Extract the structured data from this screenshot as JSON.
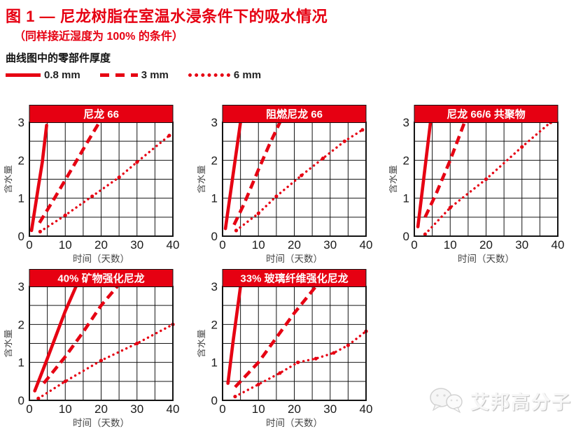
{
  "page": {
    "background": "#ffffff",
    "accent_red": "#e60012",
    "grid_color": "#141414"
  },
  "header": {
    "title": "图 1 — 尼龙树脂在室温水浸条件下的吸水情况",
    "subtitle": "（同样接近湿度为 100% 的条件）",
    "legend_heading": "曲线图中的零部件厚度",
    "legend": [
      {
        "style": "solid",
        "label": "0.8 mm"
      },
      {
        "style": "dashed",
        "label": "3 mm"
      },
      {
        "style": "dotted",
        "label": "6 mm"
      }
    ]
  },
  "axes_shared": {
    "xlabel": "时间（天数）",
    "ylabel": "含水量",
    "xticks": [
      0,
      10,
      20,
      30,
      40
    ],
    "yticks": [
      0,
      1,
      2,
      3
    ],
    "xlim": [
      0,
      40
    ],
    "ylim": [
      0,
      3
    ],
    "grid": true
  },
  "chart_data": [
    {
      "type": "line",
      "title": "尼龙 66",
      "xlabel": "时间（天数）",
      "ylabel": "含水量",
      "xlim": [
        0,
        40
      ],
      "ylim": [
        0,
        3
      ],
      "xticks": [
        0,
        10,
        20,
        30,
        40
      ],
      "yticks": [
        0,
        1,
        2,
        3
      ],
      "grid": true,
      "series": [
        {
          "name": "0.8 mm",
          "style": "solid",
          "points": [
            [
              0.6,
              0.15
            ],
            [
              2.5,
              1.3
            ],
            [
              3.6,
              1.95
            ],
            [
              4.8,
              2.92
            ]
          ]
        },
        {
          "name": "3 mm",
          "style": "dashed",
          "points": [
            [
              2.8,
              0.35
            ],
            [
              7,
              1.0
            ],
            [
              12,
              1.8
            ],
            [
              16,
              2.45
            ],
            [
              19.5,
              3.0
            ]
          ]
        },
        {
          "name": "6 mm",
          "style": "dotted",
          "points": [
            [
              3,
              0.12
            ],
            [
              10,
              0.55
            ],
            [
              17.5,
              1.05
            ],
            [
              25,
              1.55
            ],
            [
              30,
              1.95
            ],
            [
              39,
              2.65
            ]
          ]
        }
      ]
    },
    {
      "type": "line",
      "title": "阻燃尼龙 66",
      "xlabel": "时间（天数）",
      "ylabel": "含水量",
      "xlim": [
        0,
        40
      ],
      "ylim": [
        0,
        3
      ],
      "xticks": [
        0,
        10,
        20,
        30,
        40
      ],
      "yticks": [
        0,
        1,
        2,
        3
      ],
      "grid": true,
      "series": [
        {
          "name": "0.8 mm",
          "style": "solid",
          "points": [
            [
              0.8,
              0.2
            ],
            [
              2.6,
              1.4
            ],
            [
              5,
              3.0
            ]
          ]
        },
        {
          "name": "3 mm",
          "style": "dashed",
          "points": [
            [
              3.2,
              0.3
            ],
            [
              6,
              0.85
            ],
            [
              10,
              1.75
            ],
            [
              13,
              2.4
            ],
            [
              16,
              3.0
            ]
          ]
        },
        {
          "name": "6 mm",
          "style": "dotted",
          "points": [
            [
              3.8,
              0.15
            ],
            [
              10,
              0.6
            ],
            [
              15,
              1.05
            ],
            [
              22,
              1.6
            ],
            [
              28,
              2.05
            ],
            [
              34,
              2.5
            ],
            [
              39,
              2.8
            ]
          ]
        }
      ]
    },
    {
      "type": "line",
      "title": "尼龙 66/6 共聚物",
      "xlabel": "时间（天数）",
      "ylabel": "含水量",
      "xlim": [
        0,
        40
      ],
      "ylim": [
        0,
        3
      ],
      "xticks": [
        0,
        10,
        20,
        30,
        40
      ],
      "yticks": [
        0,
        1,
        2,
        3
      ],
      "grid": true,
      "series": [
        {
          "name": "0.8 mm",
          "style": "solid",
          "points": [
            [
              1,
              0.25
            ],
            [
              2.6,
              1.5
            ],
            [
              4.5,
              3.0
            ]
          ]
        },
        {
          "name": "3 mm",
          "style": "dashed",
          "points": [
            [
              3,
              0.5
            ],
            [
              6,
              1.1
            ],
            [
              10,
              2.0
            ],
            [
              14,
              3.0
            ]
          ]
        },
        {
          "name": "6 mm",
          "style": "dotted",
          "points": [
            [
              3,
              0.05
            ],
            [
              10,
              0.75
            ],
            [
              20,
              1.5
            ],
            [
              30,
              2.35
            ],
            [
              38,
              3.0
            ]
          ]
        }
      ]
    },
    {
      "type": "line",
      "title": "40% 矿物强化尼龙",
      "xlabel": "时间（天数）",
      "ylabel": "含水量",
      "xlim": [
        0,
        40
      ],
      "ylim": [
        0,
        3
      ],
      "xticks": [
        0,
        10,
        20,
        30,
        40
      ],
      "yticks": [
        0,
        1,
        2,
        3
      ],
      "grid": true,
      "series": [
        {
          "name": "0.8 mm",
          "style": "solid",
          "points": [
            [
              1.5,
              0.25
            ],
            [
              5,
              1.1
            ],
            [
              8,
              1.85
            ],
            [
              10,
              2.35
            ],
            [
              13,
              3.0
            ]
          ]
        },
        {
          "name": "3 mm",
          "style": "dashed",
          "points": [
            [
              4,
              0.45
            ],
            [
              10,
              1.15
            ],
            [
              15,
              1.8
            ],
            [
              20,
              2.5
            ],
            [
              24.5,
              3.0
            ]
          ]
        },
        {
          "name": "6 mm",
          "style": "dotted",
          "points": [
            [
              2.5,
              0.05
            ],
            [
              10,
              0.5
            ],
            [
              20,
              1.05
            ],
            [
              30,
              1.5
            ],
            [
              40,
              2.0
            ]
          ]
        }
      ]
    },
    {
      "type": "line",
      "title": "33% 玻璃纤维强化尼龙",
      "xlabel": "时间（天数）",
      "ylabel": "含水量",
      "xlim": [
        0,
        40
      ],
      "ylim": [
        0,
        3
      ],
      "xticks": [
        0,
        10,
        20,
        30,
        40
      ],
      "yticks": [
        0,
        1,
        2,
        3
      ],
      "grid": true,
      "series": [
        {
          "name": "0.8 mm",
          "style": "solid",
          "points": [
            [
              1.5,
              0.45
            ],
            [
              3,
              1.6
            ],
            [
              5,
              3.0
            ]
          ]
        },
        {
          "name": "3 mm",
          "style": "dashed",
          "points": [
            [
              3.5,
              0.35
            ],
            [
              10,
              1.0
            ],
            [
              15,
              1.65
            ],
            [
              20,
              2.3
            ],
            [
              26,
              3.0
            ]
          ]
        },
        {
          "name": "6 mm",
          "style": "dotted",
          "points": [
            [
              3.5,
              0.1
            ],
            [
              10,
              0.42
            ],
            [
              16,
              0.72
            ],
            [
              21,
              1.0
            ],
            [
              26,
              1.1
            ],
            [
              31,
              1.25
            ],
            [
              35,
              1.45
            ],
            [
              40,
              1.82
            ]
          ]
        }
      ]
    }
  ],
  "watermark": {
    "text": "艾邦高分子",
    "icon": "wechat-bubbles-icon"
  }
}
